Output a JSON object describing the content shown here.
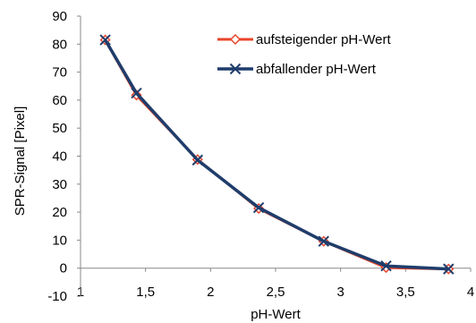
{
  "chart_data": {
    "type": "line",
    "title": "",
    "xlabel": "pH-Wert",
    "ylabel": "SPR-Signal [Pixel]",
    "xlim": [
      1,
      4
    ],
    "ylim": [
      -10,
      90
    ],
    "x_ticks": [
      1,
      1.5,
      2,
      2.5,
      3,
      3.5,
      4
    ],
    "x_tick_labels": [
      "1",
      "1,5",
      "2",
      "2,5",
      "3",
      "3,5",
      "4"
    ],
    "y_ticks": [
      -10,
      0,
      10,
      20,
      30,
      40,
      50,
      60,
      70,
      80,
      90
    ],
    "y_tick_labels": [
      "-10",
      "0",
      "10",
      "20",
      "30",
      "40",
      "50",
      "60",
      "70",
      "80",
      "90"
    ],
    "grid": false,
    "legend_position": "top-right",
    "series": [
      {
        "name": "aufsteigender pH-Wert",
        "color": "#e8452c",
        "marker": "diamond",
        "x": [
          1.19,
          1.43,
          1.9,
          2.37,
          2.87,
          3.35,
          3.83
        ],
        "y": [
          81.5,
          61.8,
          38.8,
          21.3,
          9.6,
          0.2,
          -0.3
        ]
      },
      {
        "name": "abfallender pH-Wert",
        "color": "#1f3d6b",
        "marker": "x",
        "x": [
          1.19,
          1.43,
          1.9,
          2.37,
          2.87,
          3.35,
          3.83
        ],
        "y": [
          81.5,
          62.5,
          38.6,
          21.6,
          9.6,
          0.8,
          -0.3
        ]
      }
    ]
  }
}
